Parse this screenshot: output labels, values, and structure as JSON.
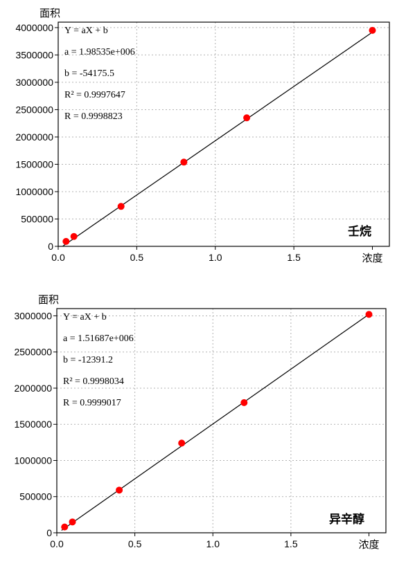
{
  "chart_data": [
    {
      "type": "scatter",
      "title": "",
      "xlabel": "浓度",
      "ylabel": "面积",
      "compound_label": "壬烷",
      "xlim": [
        0,
        2.0
      ],
      "ylim": [
        0,
        4100000
      ],
      "xticks": [
        0.0,
        0.5,
        1.0,
        1.5
      ],
      "xtick_labels": [
        "0.0",
        "0.5",
        "1.0",
        "1.5"
      ],
      "yticks": [
        0,
        500000,
        1000000,
        1500000,
        2000000,
        2500000,
        3000000,
        3500000,
        4000000
      ],
      "ytick_labels": [
        "0",
        "500000",
        "1000000",
        "1500000",
        "2000000",
        "2500000",
        "3000000",
        "3500000",
        "4000000"
      ],
      "grid": true,
      "x": [
        0.05,
        0.1,
        0.4,
        0.8,
        1.2,
        2.0
      ],
      "y": [
        90000,
        180000,
        730000,
        1540000,
        2350000,
        3950000
      ],
      "fit": {
        "slope": 1985350,
        "intercept": -54175.5
      },
      "equation_lines": [
        "Y = aX + b",
        "a = 1.98535e+006",
        "b = -54175.5",
        "R² = 0.9997647",
        "R = 0.9998823"
      ],
      "marker_color": "#ff0000",
      "line_color": "#000000"
    },
    {
      "type": "scatter",
      "title": "",
      "xlabel": "浓度",
      "ylabel": "面积",
      "compound_label": "异辛醇",
      "xlim": [
        0,
        2.0
      ],
      "ylim": [
        0,
        3100000
      ],
      "xticks": [
        0.0,
        0.5,
        1.0,
        1.5
      ],
      "xtick_labels": [
        "0.0",
        "0.5",
        "1.0",
        "1.5"
      ],
      "yticks": [
        0,
        500000,
        1000000,
        1500000,
        2000000,
        2500000,
        3000000
      ],
      "ytick_labels": [
        "0",
        "500000",
        "1000000",
        "1500000",
        "2000000",
        "2500000",
        "3000000"
      ],
      "grid": true,
      "x": [
        0.05,
        0.1,
        0.4,
        0.8,
        1.2,
        2.0
      ],
      "y": [
        80000,
        150000,
        590000,
        1240000,
        1800000,
        3020000
      ],
      "fit": {
        "slope": 1516870,
        "intercept": -12391.2
      },
      "equation_lines": [
        "Y = aX + b",
        "a = 1.51687e+006",
        "b = -12391.2",
        "R² = 0.9998034",
        "R = 0.9999017"
      ],
      "marker_color": "#ff0000",
      "line_color": "#000000"
    }
  ]
}
